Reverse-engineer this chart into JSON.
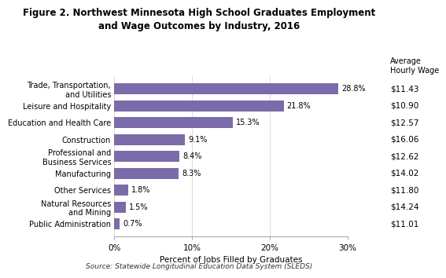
{
  "title": "Figure 2. Northwest Minnesota High School Graduates Employment\nand Wage Outcomes by Industry, 2016",
  "categories": [
    "Public Administration",
    "Natural Resources\nand Mining",
    "Other Services",
    "Manufacturing",
    "Professional and\nBusiness Services",
    "Construction",
    "Education and Health Care",
    "Leisure and Hospitality",
    "Trade, Transportation,\nand Utilities"
  ],
  "values": [
    0.7,
    1.5,
    1.8,
    8.3,
    8.4,
    9.1,
    15.3,
    21.8,
    28.8
  ],
  "pct_labels": [
    "0.7%",
    "1.5%",
    "1.8%",
    "8.3%",
    "8.4%",
    "9.1%",
    "15.3%",
    "21.8%",
    "28.8%"
  ],
  "wages": [
    "$11.01",
    "$14.24",
    "$11.80",
    "$14.02",
    "$12.62",
    "$16.06",
    "$12.57",
    "$10.90",
    "$11.43"
  ],
  "bar_color": "#7b6baa",
  "xlabel": "Percent of Jobs Filled by Graduates",
  "xlim": [
    0,
    30
  ],
  "xticks": [
    0,
    10,
    20,
    30
  ],
  "xticklabels": [
    "0%",
    "10%",
    "20%",
    "30%"
  ],
  "source": "Source: Statewide Longitudinal Education Data System (SLEDS)",
  "avg_wage_label": "Average\nHourly Wage",
  "background_color": "#ffffff"
}
